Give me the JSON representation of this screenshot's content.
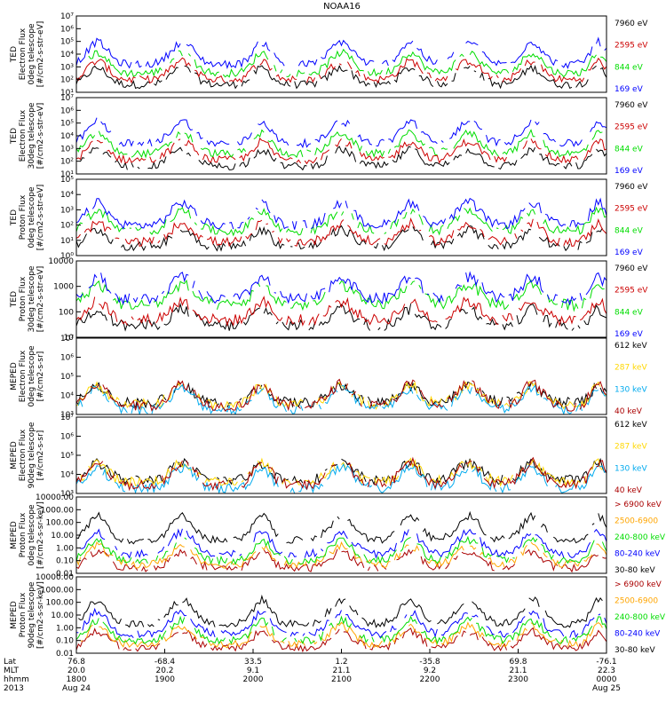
{
  "title": "NOAA16",
  "chart_data": [
    {
      "type": "line",
      "scale": "log",
      "ylabel": [
        "TED",
        "Electron Flux",
        "0deg telescope",
        "[#/cm2-s-str-eV]"
      ],
      "ytick_labels": [
        "10¹",
        "10²",
        "10³",
        "10⁴",
        "10⁵",
        "10⁶",
        "10⁷"
      ],
      "ylog": [
        1,
        7
      ],
      "series": [
        {
          "name": "7960 eV",
          "color": "#000000",
          "level": 1.6
        },
        {
          "name": "2595 eV",
          "color": "#cc0000",
          "level": 2.0
        },
        {
          "name": "844 eV",
          "color": "#00dd00",
          "level": 2.5
        },
        {
          "name": "169 eV",
          "color": "#0000ff",
          "level": 3.2
        }
      ]
    },
    {
      "type": "line",
      "scale": "log",
      "ylabel": [
        "TED",
        "Electron Flux",
        "30deg telescope",
        "[#/cm2-s-str-eV]"
      ],
      "ytick_labels": [
        "10¹",
        "10²",
        "10³",
        "10⁴",
        "10⁵",
        "10⁶",
        "10⁷"
      ],
      "ylog": [
        1,
        7
      ],
      "series": [
        {
          "name": "7960 eV",
          "color": "#000000",
          "level": 1.6
        },
        {
          "name": "2595 eV",
          "color": "#cc0000",
          "level": 2.1
        },
        {
          "name": "844 eV",
          "color": "#00dd00",
          "level": 2.6
        },
        {
          "name": "169 eV",
          "color": "#0000ff",
          "level": 3.4
        }
      ]
    },
    {
      "type": "line",
      "scale": "log",
      "ylabel": [
        "TED",
        "Proton Flux",
        "0deg telescope",
        "[#/cm2-s-str-eV]"
      ],
      "ytick_labels": [
        "10⁰",
        "10¹",
        "10²",
        "10³",
        "10⁴",
        "10⁵"
      ],
      "ylog": [
        0,
        5
      ],
      "series": [
        {
          "name": "7960 eV",
          "color": "#000000",
          "level": 0.6
        },
        {
          "name": "2595 eV",
          "color": "#cc0000",
          "level": 0.9
        },
        {
          "name": "844 eV",
          "color": "#00dd00",
          "level": 1.6
        },
        {
          "name": "169 eV",
          "color": "#0000ff",
          "level": 2.0
        }
      ]
    },
    {
      "type": "line",
      "scale": "log",
      "ylabel": [
        "TED",
        "Proton Flux",
        "30deg telescope",
        "[#/cm2-s-str-eV]"
      ],
      "ytick_labels": [
        "10",
        "100",
        "1000",
        "10000"
      ],
      "ylog": [
        0,
        4
      ],
      "series": [
        {
          "name": "7960 eV",
          "color": "#000000",
          "level": 0.6
        },
        {
          "name": "2595 eV",
          "color": "#cc0000",
          "level": 0.9
        },
        {
          "name": "844 eV",
          "color": "#00dd00",
          "level": 1.7
        },
        {
          "name": "169 eV",
          "color": "#0000ff",
          "level": 2.0
        }
      ]
    },
    {
      "type": "line",
      "scale": "log",
      "ylabel": [
        "MEPED",
        "Electron Flux",
        "0deg telescope",
        "[#/cm2-s-sr]"
      ],
      "ytick_labels": [
        "10³",
        "10⁴",
        "10⁵",
        "10⁶",
        "10⁷"
      ],
      "ylog": [
        2.5,
        7
      ],
      "series": [
        {
          "name": "612 keV",
          "color": "#000000",
          "level": 3.2
        },
        {
          "name": "287 keV",
          "color": "#ffd700",
          "level": 3.1
        },
        {
          "name": "130 keV",
          "color": "#00aaee",
          "level": 2.8
        },
        {
          "name": "40 keV",
          "color": "#aa0000",
          "level": 3.0
        }
      ]
    },
    {
      "type": "line",
      "scale": "log",
      "ylabel": [
        "MEPED",
        "Electron Flux",
        "90deg telescope",
        "[#/cm2-s-sr]"
      ],
      "ytick_labels": [
        "10³",
        "10⁴",
        "10⁵",
        "10⁶",
        "10⁷"
      ],
      "ylog": [
        2.5,
        7
      ],
      "series": [
        {
          "name": "612 keV",
          "color": "#000000",
          "level": 3.3
        },
        {
          "name": "287 keV",
          "color": "#ffd700",
          "level": 3.2
        },
        {
          "name": "130 keV",
          "color": "#00aaee",
          "level": 2.8
        },
        {
          "name": "40 keV",
          "color": "#aa0000",
          "level": 3.0
        }
      ]
    },
    {
      "type": "line",
      "scale": "log",
      "ylabel": [
        "MEPED",
        "Proton Flux",
        "0deg telescope",
        "[#/cm2-s-sr-keV]"
      ],
      "ytick_labels": [
        "0.01",
        "0.10",
        "1.00",
        "10.00",
        "100.00",
        "1000.00",
        "10000.00"
      ],
      "ylog": [
        -2,
        4
      ],
      "series": [
        {
          "name": "> 6900 keV",
          "color": "#aa0000",
          "level": -1.6
        },
        {
          "name": "2500-6900",
          "color": "#ffa500",
          "level": -1.3
        },
        {
          "name": "240-800 keV",
          "color": "#00dd00",
          "level": -1.0
        },
        {
          "name": "80-240 keV",
          "color": "#0000ff",
          "level": -0.5
        },
        {
          "name": "30-80 keV",
          "color": "#000000",
          "level": 0.6
        }
      ]
    },
    {
      "type": "line",
      "scale": "log",
      "ylabel": [
        "MEPED",
        "Proton Flux",
        "90deg telescope",
        "[#/cm2-s-sr-keV]"
      ],
      "ytick_labels": [
        "0.01",
        "0.10",
        "1.00",
        "10.00",
        "100.00",
        "1000.00",
        "10000.00"
      ],
      "ylog": [
        -2,
        4
      ],
      "series": [
        {
          "name": "> 6900 keV",
          "color": "#aa0000",
          "level": -1.6
        },
        {
          "name": "2500-6900",
          "color": "#ffa500",
          "level": -1.3
        },
        {
          "name": "240-800 keV",
          "color": "#00dd00",
          "level": -1.0
        },
        {
          "name": "80-240 keV",
          "color": "#0000ff",
          "level": -0.5
        },
        {
          "name": "30-80 keV",
          "color": "#000000",
          "level": 0.3
        }
      ]
    }
  ],
  "xaxis": {
    "row_labels": [
      "Lat",
      "MLT",
      "hhmm",
      "2013"
    ],
    "ticks": [
      {
        "lat": "76.8",
        "mlt": "20.0",
        "hhmm": "1800",
        "date": "Aug 24"
      },
      {
        "lat": "-68.4",
        "mlt": "20.2",
        "hhmm": "1900",
        "date": ""
      },
      {
        "lat": "33.5",
        "mlt": "9.1",
        "hhmm": "2000",
        "date": ""
      },
      {
        "lat": "1.2",
        "mlt": "21.1",
        "hhmm": "2100",
        "date": ""
      },
      {
        "lat": "-35.8",
        "mlt": "9.2",
        "hhmm": "2200",
        "date": ""
      },
      {
        "lat": "69.8",
        "mlt": "21.1",
        "hhmm": "2300",
        "date": ""
      },
      {
        "lat": "-76.1",
        "mlt": "22.3",
        "hhmm": "0000",
        "date": "Aug 25"
      }
    ]
  },
  "passes": [
    {
      "t": 0.04,
      "w": 0.04
    },
    {
      "t": 0.2,
      "w": 0.045
    },
    {
      "t": 0.35,
      "w": 0.035
    },
    {
      "t": 0.5,
      "w": 0.045
    },
    {
      "t": 0.63,
      "w": 0.04
    },
    {
      "t": 0.74,
      "w": 0.045
    },
    {
      "t": 0.86,
      "w": 0.04
    },
    {
      "t": 0.985,
      "w": 0.03
    }
  ]
}
